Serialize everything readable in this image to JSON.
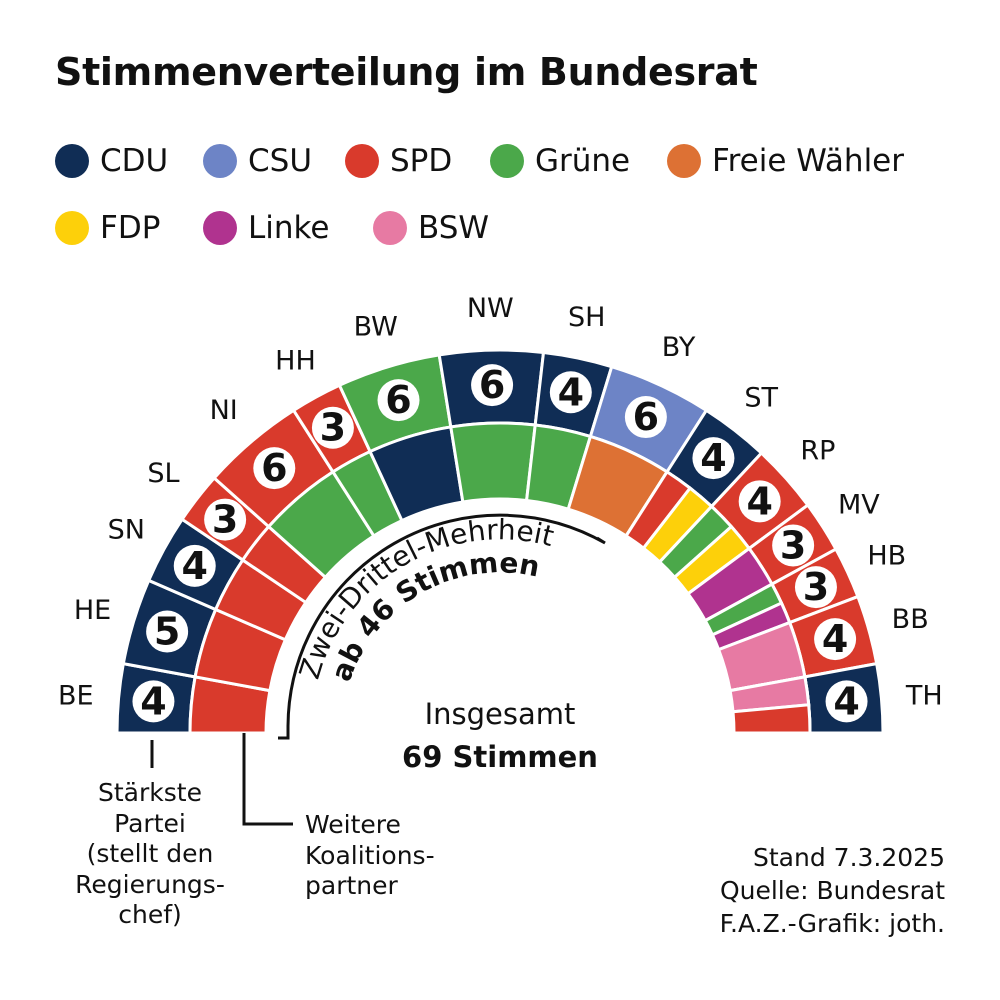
{
  "title": "Stimmenverteilung im Bundesrat",
  "legend": [
    {
      "name": "CDU",
      "color": "#102d55"
    },
    {
      "name": "CSU",
      "color": "#6d84c6"
    },
    {
      "name": "SPD",
      "color": "#d93a2c"
    },
    {
      "name": "Grüne",
      "color": "#4ba84a"
    },
    {
      "name": "Freie Wähler",
      "color": "#dd7134"
    },
    {
      "name": "FDP",
      "color": "#fdd00a"
    },
    {
      "name": "Linke",
      "color": "#b0338f"
    },
    {
      "name": "BSW",
      "color": "#e77aa3"
    }
  ],
  "chart_data": {
    "type": "seat-distribution",
    "total_seats": 69,
    "states": [
      {
        "code": "BE",
        "votes": 4,
        "parties": [
          "CDU",
          "SPD"
        ]
      },
      {
        "code": "HE",
        "votes": 5,
        "parties": [
          "CDU",
          "SPD"
        ]
      },
      {
        "code": "SN",
        "votes": 4,
        "parties": [
          "CDU",
          "SPD"
        ]
      },
      {
        "code": "SL",
        "votes": 3,
        "parties": [
          "SPD"
        ]
      },
      {
        "code": "NI",
        "votes": 6,
        "parties": [
          "SPD",
          "Grüne"
        ]
      },
      {
        "code": "HH",
        "votes": 3,
        "parties": [
          "SPD",
          "Grüne"
        ]
      },
      {
        "code": "BW",
        "votes": 6,
        "parties": [
          "Grüne",
          "CDU"
        ]
      },
      {
        "code": "NW",
        "votes": 6,
        "parties": [
          "CDU",
          "Grüne"
        ]
      },
      {
        "code": "SH",
        "votes": 4,
        "parties": [
          "CDU",
          "Grüne"
        ]
      },
      {
        "code": "BY",
        "votes": 6,
        "parties": [
          "CSU",
          "Freie Wähler"
        ]
      },
      {
        "code": "ST",
        "votes": 4,
        "parties": [
          "CDU",
          "SPD",
          "FDP"
        ]
      },
      {
        "code": "RP",
        "votes": 4,
        "parties": [
          "SPD",
          "Grüne",
          "FDP"
        ]
      },
      {
        "code": "MV",
        "votes": 3,
        "parties": [
          "SPD",
          "Linke"
        ]
      },
      {
        "code": "HB",
        "votes": 3,
        "parties": [
          "SPD",
          "Grüne",
          "Linke"
        ]
      },
      {
        "code": "BB",
        "votes": 4,
        "parties": [
          "SPD",
          "BSW"
        ]
      },
      {
        "code": "TH",
        "votes": 4,
        "parties": [
          "CDU",
          "BSW",
          "SPD"
        ]
      }
    ]
  },
  "majority": {
    "line1": "Zwei-Drittel-Mehrheit",
    "line2": "ab 46 Stimmen"
  },
  "total": {
    "line1": "Insgesamt",
    "line2": "69 Stimmen"
  },
  "notes": {
    "strongest": "Stärkste\nPartei\n(stellt den\nRegierungs-\nchef)",
    "partners": "Weitere\nKoalitions-\npartner"
  },
  "source": {
    "stand": "Stand 7.3.2025",
    "quelle": "Quelle: Bundesrat",
    "grafik": "F.A.Z.-Grafik: joth."
  }
}
